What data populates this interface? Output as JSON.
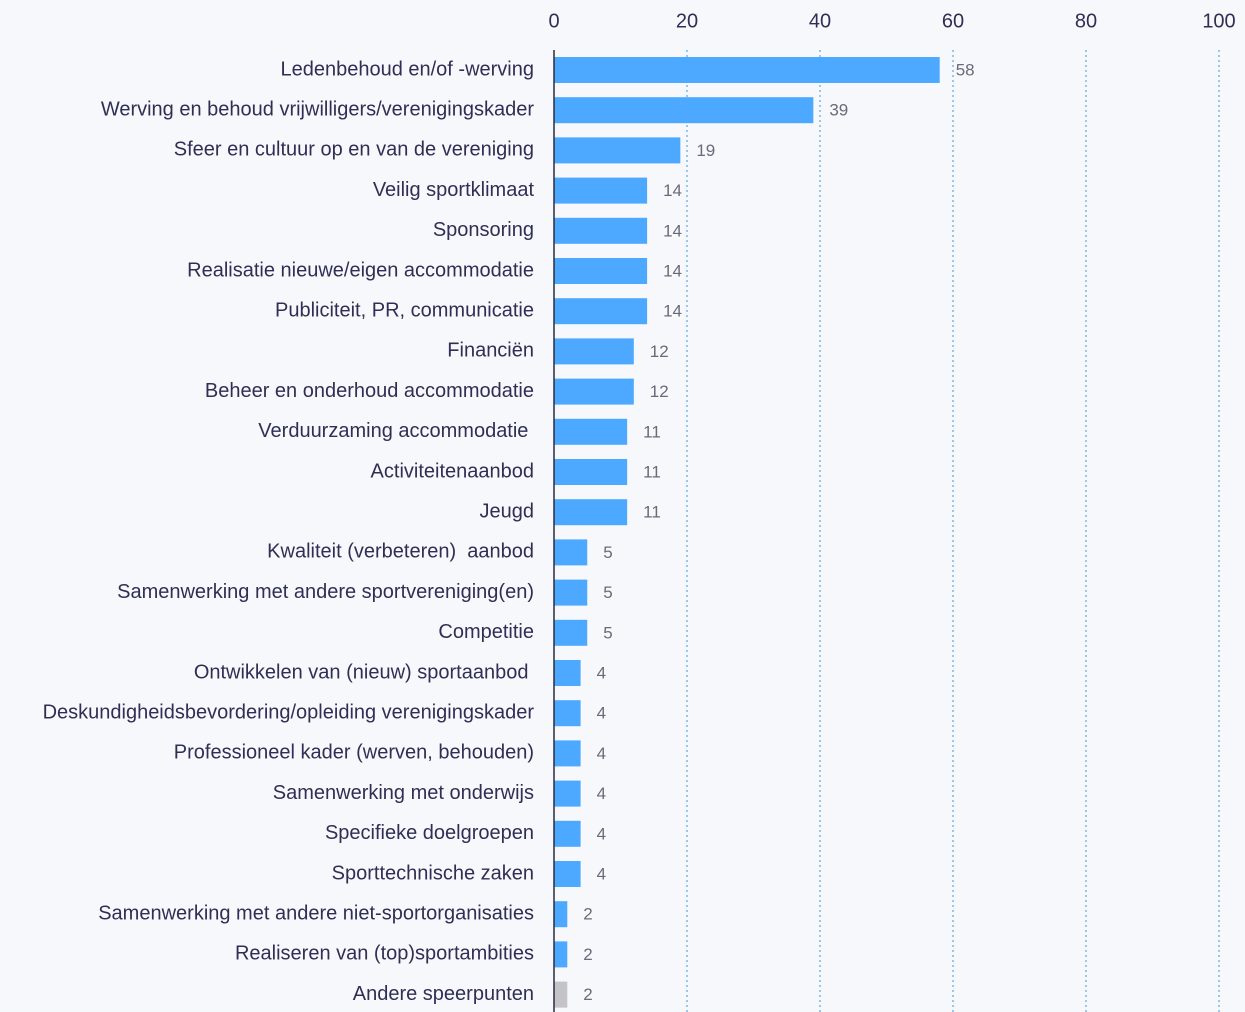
{
  "chart_data": {
    "type": "bar",
    "orientation": "horizontal",
    "categories": [
      "Ledenbehoud en/of -werving",
      "Werving en behoud vrijwilligers/verenigingskader",
      "Sfeer en cultuur op en van de vereniging",
      "Veilig sportklimaat",
      "Sponsoring",
      "Realisatie nieuwe/eigen accommodatie",
      "Publiciteit, PR, communicatie",
      "Financiën",
      "Beheer en onderhoud accommodatie",
      "Verduurzaming accommodatie ",
      "Activiteitenaanbod",
      "Jeugd",
      "Kwaliteit (verbeteren)  aanbod",
      "Samenwerking met andere sportvereniging(en)",
      "Competitie",
      "Ontwikkelen van (nieuw) sportaanbod ",
      "Deskundigheidsbevordering/opleiding verenigingskader",
      "Professioneel kader (werven, behouden)",
      "Samenwerking met onderwijs",
      "Specifieke doelgroepen",
      "Sporttechnische zaken",
      "Samenwerking met andere niet-sportorganisaties",
      "Realiseren van (top)sportambities",
      "Andere speerpunten"
    ],
    "values": [
      58,
      39,
      19,
      14,
      14,
      14,
      14,
      12,
      12,
      11,
      11,
      11,
      5,
      5,
      5,
      4,
      4,
      4,
      4,
      4,
      4,
      2,
      2,
      2
    ],
    "colors": [
      "#4da8ff",
      "#4da8ff",
      "#4da8ff",
      "#4da8ff",
      "#4da8ff",
      "#4da8ff",
      "#4da8ff",
      "#4da8ff",
      "#4da8ff",
      "#4da8ff",
      "#4da8ff",
      "#4da8ff",
      "#4da8ff",
      "#4da8ff",
      "#4da8ff",
      "#4da8ff",
      "#4da8ff",
      "#4da8ff",
      "#4da8ff",
      "#4da8ff",
      "#4da8ff",
      "#4da8ff",
      "#4da8ff",
      "#c4c4c8"
    ],
    "xlim": [
      0,
      100
    ],
    "xticks": [
      0,
      20,
      40,
      60,
      80,
      100
    ],
    "grid": true
  }
}
